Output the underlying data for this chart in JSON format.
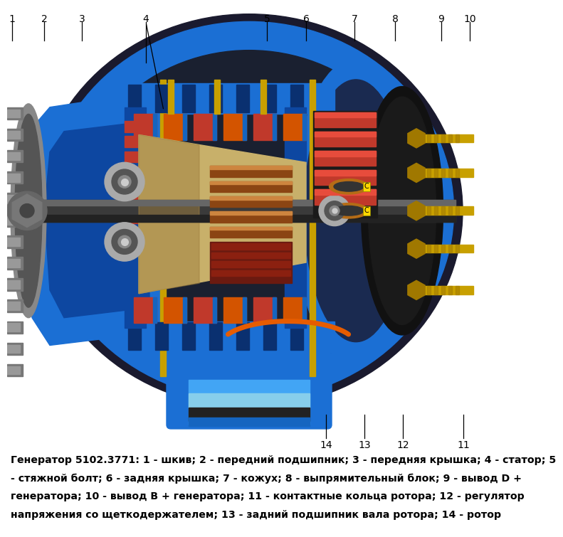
{
  "caption_line1": "Генератор 5102.3771: 1 - шкив; 2 - передний подшипник; 3 - передняя крышка; 4 - статор; 5",
  "caption_line2": "- стяжной болт; 6 - задняя крышка; 7 - кожух; 8 - выпрямительный блок; 9 - вывод D +",
  "caption_line3": "генератора; 10 - вывод B + генератора; 11 - контактные кольца ротора; 12 - регулятор",
  "caption_line4": "напряжения со щеткодержателем; 13 - задний подшипник вала ротора; 14 - ротор",
  "bg_color": "#ffffff",
  "caption_color": "#000000",
  "caption_fontsize": 10.2,
  "fig_width": 6.59,
  "fig_height": 7.35,
  "top_labels": {
    "1": 7,
    "2": 52,
    "3": 105,
    "4": 195,
    "5": 365,
    "6": 420,
    "7": 488,
    "8": 545,
    "9": 610,
    "10": 648
  },
  "bottom_labels": {
    "14": 448,
    "13": 502,
    "12": 556,
    "11": 641
  },
  "label_fontsize": 11,
  "line_color": "#000000",
  "diag_bg": "#2a2a2a",
  "blue_main": "#1b6fd4",
  "blue_dark": "#0d47a1",
  "blue_light": "#42a5f5",
  "blue_mid": "#1565c0",
  "copper": "#b56c16",
  "red_winding": "#c0392b",
  "shaft_color": "#555555",
  "rotor_color": "#c8b06a",
  "gold": "#b8860b",
  "gray_bearing": "#aaaaaa",
  "dark_housing": "#1a1a2e"
}
